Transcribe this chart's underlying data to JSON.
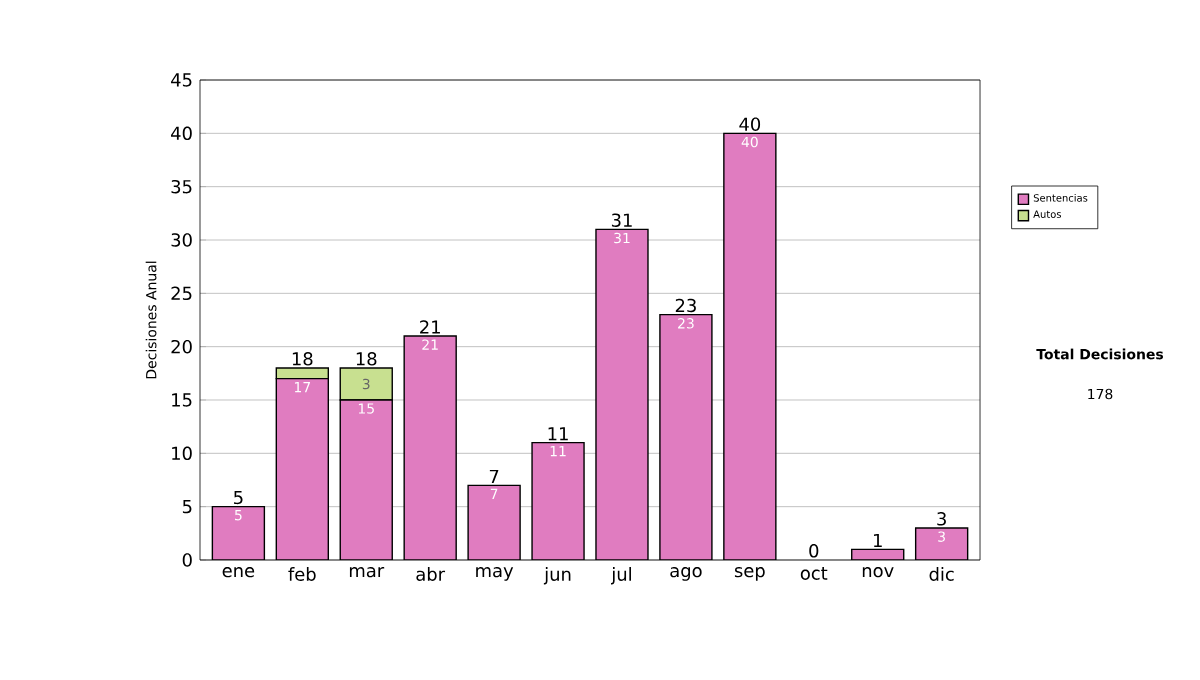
{
  "chart_data": {
    "type": "bar",
    "stacked": true,
    "ylabel": "Decisiones Anual",
    "categories": [
      "ene",
      "feb",
      "mar",
      "abr",
      "may",
      "jun",
      "jul",
      "ago",
      "sep",
      "oct",
      "nov",
      "dic"
    ],
    "series": [
      {
        "name": "Sentencias",
        "color": "#e07cc0",
        "values": [
          5,
          17,
          15,
          21,
          7,
          11,
          31,
          23,
          40,
          0,
          1,
          3
        ],
        "value_labels": [
          "5",
          "17",
          "15",
          "21",
          "7",
          "11",
          "31",
          "23",
          "40",
          null,
          null,
          "3"
        ]
      },
      {
        "name": "Autos",
        "color": "#c8e090",
        "values": [
          0,
          1,
          3,
          0,
          0,
          0,
          0,
          0,
          0,
          0,
          0,
          0
        ],
        "value_labels": [
          null,
          null,
          "3",
          null,
          null,
          null,
          null,
          null,
          null,
          null,
          null,
          null
        ]
      }
    ],
    "totals": [
      "5",
      "18",
      "18",
      "21",
      "7",
      "11",
      "31",
      "23",
      "40",
      "0",
      "1",
      "3"
    ],
    "ylim": [
      0,
      45
    ],
    "yticks": [
      0,
      5,
      10,
      15,
      20,
      25,
      30,
      35,
      40,
      45
    ],
    "grid": "y",
    "legend": "right",
    "annotations": [
      "**Total Decisiones**",
      "178"
    ]
  }
}
